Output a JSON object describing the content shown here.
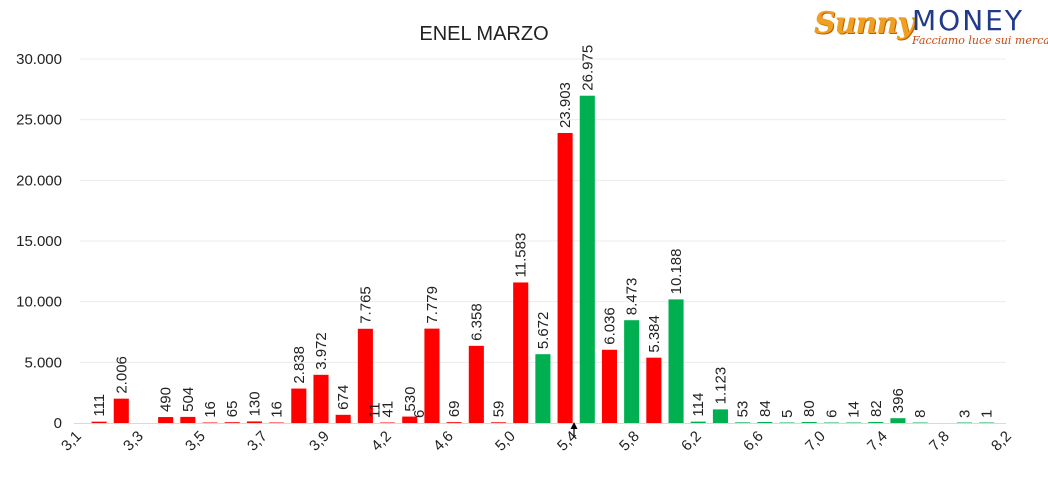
{
  "logo": {
    "brand_left": "Sunny",
    "brand_right": "MONEY",
    "tagline": "Facciamo luce sui mercati"
  },
  "chart_data": {
    "type": "bar",
    "title": "ENEL MARZO",
    "xlabel": "",
    "ylabel": "",
    "ylim": [
      0,
      30000
    ],
    "xlim": [
      3.1,
      8.2
    ],
    "y_ticks": [
      "0",
      "5.000",
      "10.000",
      "15.000",
      "20.000",
      "25.000",
      "30.000"
    ],
    "y_tick_values": [
      0,
      5000,
      10000,
      15000,
      20000,
      25000,
      30000
    ],
    "x_ticks": [
      "3,1",
      "3,3",
      "3,5",
      "3,7",
      "3,9",
      "4,2",
      "4,6",
      "5,0",
      "5,4",
      "5,8",
      "6,2",
      "6,6",
      "7,0",
      "7,4",
      "7,8",
      "8,2"
    ],
    "grid": "horizontal",
    "series_colors": {
      "red": "#ff0000",
      "green": "#00b050"
    },
    "current_price_marker": 5.4,
    "bars": [
      {
        "slot": 0,
        "value": 111,
        "label": "111",
        "color": "red"
      },
      {
        "slot": 1,
        "value": 2006,
        "label": "2.006",
        "color": "red"
      },
      {
        "slot": 3,
        "value": 490,
        "label": "490",
        "color": "red"
      },
      {
        "slot": 4,
        "value": 504,
        "label": "504",
        "color": "red"
      },
      {
        "slot": 5,
        "value": 16,
        "label": "16",
        "color": "red"
      },
      {
        "slot": 6,
        "value": 65,
        "label": "65",
        "color": "red"
      },
      {
        "slot": 7,
        "value": 130,
        "label": "130",
        "color": "red"
      },
      {
        "slot": 8,
        "value": 16,
        "label": "16",
        "color": "red"
      },
      {
        "slot": 9,
        "value": 2838,
        "label": "2.838",
        "color": "red"
      },
      {
        "slot": 10,
        "value": 3972,
        "label": "3.972",
        "color": "red"
      },
      {
        "slot": 11,
        "value": 674,
        "label": "674",
        "color": "red"
      },
      {
        "slot": 12,
        "value": 7765,
        "label": "7.765",
        "color": "red"
      },
      {
        "slot": 13,
        "value": 41,
        "label": "41",
        "color": "red"
      },
      {
        "slot": 14,
        "value": 530,
        "label": "530",
        "color": "red"
      },
      {
        "slot": 15,
        "value": 7779,
        "label": "7.779",
        "color": "red"
      },
      {
        "slot": 16,
        "value": 69,
        "label": "69",
        "color": "red"
      },
      {
        "slot": 17,
        "value": 6358,
        "label": "6.358",
        "color": "red"
      },
      {
        "slot": 18,
        "value": 59,
        "label": "59",
        "color": "red"
      },
      {
        "slot": 19,
        "value": 11583,
        "label": "11.583",
        "color": "red"
      },
      {
        "slot": 20,
        "value": 5672,
        "label": "5.672",
        "color": "green"
      },
      {
        "slot": 21,
        "value": 23903,
        "label": "23.903",
        "color": "red"
      },
      {
        "slot": 22,
        "value": 26975,
        "label": "26.975",
        "color": "green"
      },
      {
        "slot": 23,
        "value": 6036,
        "label": "6.036",
        "color": "red"
      },
      {
        "slot": 24,
        "value": 8473,
        "label": "8.473",
        "color": "green"
      },
      {
        "slot": 25,
        "value": 5384,
        "label": "5.384",
        "color": "red"
      },
      {
        "slot": 26,
        "value": 10188,
        "label": "10.188",
        "color": "green"
      },
      {
        "slot": 27,
        "value": 114,
        "label": "114",
        "color": "green"
      },
      {
        "slot": 28,
        "value": 1123,
        "label": "1.123",
        "color": "green"
      },
      {
        "slot": 29,
        "value": 53,
        "label": "53",
        "color": "green"
      },
      {
        "slot": 30,
        "value": 84,
        "label": "84",
        "color": "green"
      },
      {
        "slot": 31,
        "value": 5,
        "label": "5",
        "color": "green"
      },
      {
        "slot": 32,
        "value": 80,
        "label": "80",
        "color": "green"
      },
      {
        "slot": 33,
        "value": 6,
        "label": "6",
        "color": "green"
      },
      {
        "slot": 34,
        "value": 14,
        "label": "14",
        "color": "green"
      },
      {
        "slot": 35,
        "value": 82,
        "label": "82",
        "color": "green"
      },
      {
        "slot": 36,
        "value": 396,
        "label": "396",
        "color": "green"
      },
      {
        "slot": 37,
        "value": 8,
        "label": "8",
        "color": "green"
      },
      {
        "slot": 39,
        "value": 3,
        "label": "3",
        "color": "green"
      },
      {
        "slot": 40,
        "value": 1,
        "label": "1",
        "color": "green"
      }
    ],
    "extra_labels": [
      {
        "after_slot": 12,
        "label": "11"
      },
      {
        "after_slot": 14,
        "label": "6"
      }
    ]
  }
}
